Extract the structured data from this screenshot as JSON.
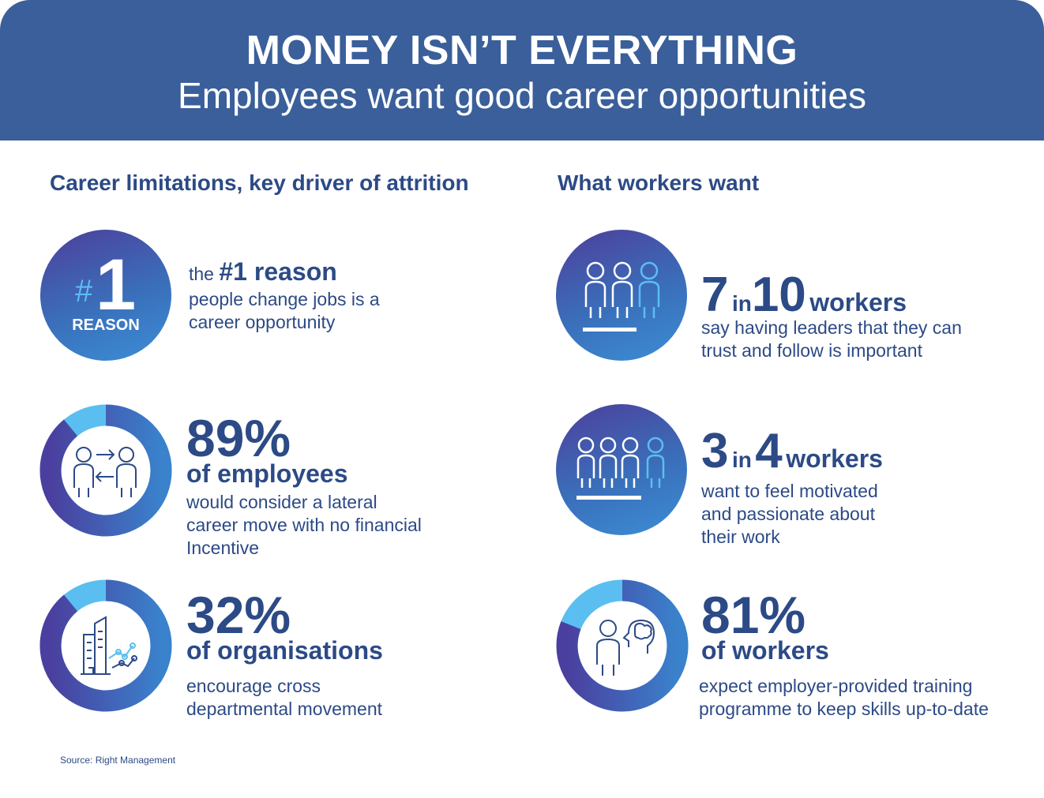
{
  "header": {
    "title": "MONEY ISN’T EVERYTHING",
    "subtitle": "Employees want good career opportunities"
  },
  "left": {
    "title": "Career limitations, key driver of attrition",
    "stat1": {
      "badge_hash": "#",
      "badge_num": "1",
      "badge_label": "REASON",
      "pre": "the ",
      "strong": "#1 reason",
      "line1": "people change jobs is a",
      "line2": "career opportunity"
    },
    "stat2": {
      "value": "89%",
      "fraction": 0.89,
      "headline": "of employees",
      "line1": "would consider a lateral",
      "line2": "career move with no financial",
      "line3": "Incentive"
    },
    "stat3": {
      "value": "32%",
      "headline": "of organisations",
      "line1": "encourage cross",
      "line2": "departmental movement"
    }
  },
  "right": {
    "title": "What workers want",
    "stat1": {
      "num_a": "7",
      "in": "in",
      "num_b": "10",
      "unit": "workers",
      "line1": "say having leaders that they can",
      "line2": "trust and follow is important"
    },
    "stat2": {
      "num_a": "3",
      "in": "in",
      "num_b": "4",
      "unit": "workers",
      "line1": "want to feel motivated",
      "line2": "and passionate about",
      "line3": "their work"
    },
    "stat3": {
      "value": "81%",
      "fraction": 0.81,
      "headline": "of workers",
      "line1": "expect employer-provided training",
      "line2": "programme to keep skills up-to-date"
    }
  },
  "source": "Source: Right Management",
  "colors": {
    "header": "#3a5f9a",
    "text": "#2c4a86",
    "ring_dark": "#4a3f9e",
    "ring_mid": "#3a82cc",
    "ring_light": "#5bbef0"
  },
  "icons": [
    "number-one-badge",
    "people-exchange-icon",
    "building-growth-icon",
    "three-people-icon",
    "four-people-icon",
    "person-brain-icon"
  ]
}
